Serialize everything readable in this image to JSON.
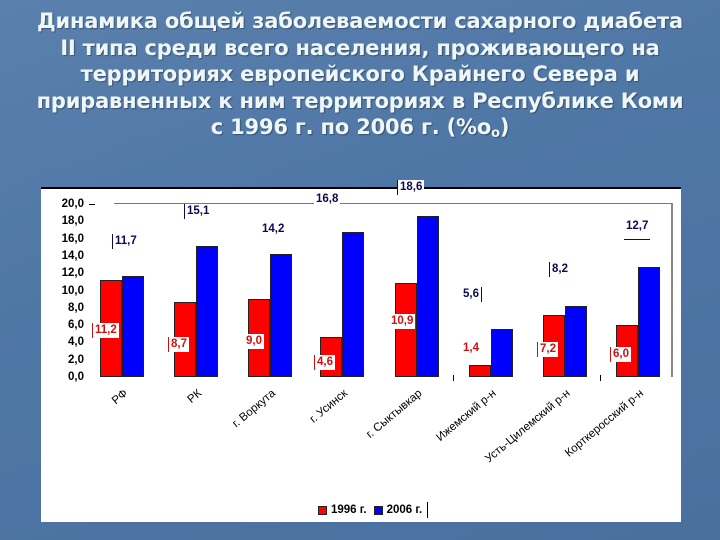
{
  "slide": {
    "title_lines": [
      "Динамика общей заболеваемости сахарного диабета",
      "II типа среди всего населения, проживающего на",
      "территориях европейского Крайнего Севера и",
      "приравненных к ним территориях в Республике Коми",
      "с 1996 г. по 2006 г. (%о"
    ],
    "title_subscript": "о",
    "title_close": ")"
  },
  "colors": {
    "background": "#4f77a6",
    "series_1996": "#ff0000",
    "series_2006": "#0000ff",
    "title_text": "#eef6f6"
  },
  "chart_data": {
    "type": "bar",
    "title": "Динамика общей заболеваемости сахарного диабета II типа среди всего населения, проживающего на территориях европейского Крайнего Севера и приравненных к ним территориях в Республике Коми с 1996 г. по 2006 г. (‰о)",
    "xlabel": "",
    "ylabel": "",
    "ylim": [
      0,
      20
    ],
    "yticks": [
      "0,0",
      "2,0",
      "4,0",
      "6,0",
      "8,0",
      "10,0",
      "12,0",
      "14,0",
      "16,0",
      "18,0",
      "20,0"
    ],
    "grid": false,
    "legend_position": "bottom",
    "categories": [
      "РФ",
      "РК",
      "г. Воркута",
      "г. Усинск",
      "г. Сыктывкар",
      "Ижемский р-н",
      "Усть-Цилемский р-н",
      "Корткеросский р-н"
    ],
    "series": [
      {
        "name": "1996 г.",
        "color": "#ff0000",
        "values": [
          11.2,
          8.7,
          9.0,
          4.6,
          10.9,
          1.4,
          7.2,
          6.0
        ],
        "labels": [
          "11,2",
          "8,7",
          "9,0",
          "4,6",
          "10,9",
          "1,4",
          "7,2",
          "6,0"
        ]
      },
      {
        "name": "2006 г.",
        "color": "#0000ff",
        "values": [
          11.7,
          15.1,
          14.2,
          16.8,
          18.6,
          5.6,
          8.2,
          12.7
        ],
        "labels": [
          "11,7",
          "15,1",
          "14,2",
          "16,8",
          "18,6",
          "5,6",
          "8,2",
          "12,7"
        ]
      }
    ]
  },
  "legend": {
    "items": [
      "1996 г.",
      "2006 г."
    ]
  }
}
